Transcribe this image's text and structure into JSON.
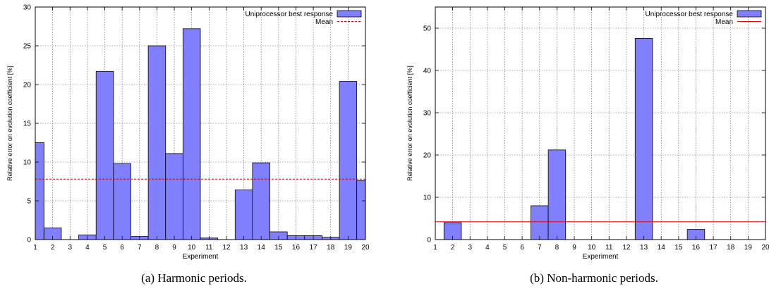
{
  "captions": [
    "(a) Harmonic periods.",
    "(b) Non-harmonic periods."
  ],
  "chart_data": [
    {
      "type": "bar",
      "xlabel": "Experiment",
      "ylabel": "Relative error on evolution coefficient [%]",
      "xlim": [
        1,
        20
      ],
      "ylim": [
        0,
        30
      ],
      "xticks": [
        1,
        2,
        3,
        4,
        5,
        6,
        7,
        8,
        9,
        10,
        11,
        12,
        13,
        14,
        15,
        16,
        17,
        18,
        19,
        20
      ],
      "yticks": [
        0,
        5,
        10,
        15,
        20,
        25,
        30
      ],
      "grid": true,
      "legend_position": "top-right",
      "series": [
        {
          "name": "Uniprocessor best response",
          "type": "bar",
          "color": "#8080ff",
          "x": [
            1,
            2,
            3,
            4,
            5,
            6,
            7,
            8,
            9,
            10,
            11,
            12,
            13,
            14,
            15,
            16,
            17,
            18,
            19,
            20
          ],
          "values": [
            12.5,
            1.5,
            0,
            0.6,
            21.7,
            9.8,
            0.4,
            25.0,
            11.1,
            27.2,
            0.2,
            0,
            6.4,
            9.9,
            1.0,
            0.5,
            0.5,
            0.3,
            20.4,
            7.6
          ]
        },
        {
          "name": "Mean",
          "type": "hline",
          "style": "dashed",
          "color": "#d00000",
          "value": 7.8
        }
      ]
    },
    {
      "type": "bar",
      "xlabel": "Experiment",
      "ylabel": "Relative error on evolution coefficient [%]",
      "xlim": [
        1,
        20
      ],
      "ylim": [
        0,
        55
      ],
      "xticks": [
        1,
        2,
        3,
        4,
        5,
        6,
        7,
        8,
        9,
        10,
        11,
        12,
        13,
        14,
        15,
        16,
        17,
        18,
        19,
        20
      ],
      "yticks": [
        0,
        10,
        20,
        30,
        40,
        50
      ],
      "grid": true,
      "legend_position": "top-right",
      "series": [
        {
          "name": "Uniprocessor best response",
          "type": "bar",
          "color": "#8080ff",
          "x": [
            1,
            2,
            3,
            4,
            5,
            6,
            7,
            8,
            9,
            10,
            11,
            12,
            13,
            14,
            15,
            16,
            17,
            18,
            19,
            20
          ],
          "values": [
            0,
            4.0,
            0,
            0,
            0,
            0,
            8.0,
            21.2,
            0,
            0,
            0,
            0,
            47.6,
            0,
            0,
            2.4,
            0,
            0,
            0,
            0
          ]
        },
        {
          "name": "Mean",
          "type": "hline",
          "style": "solid",
          "color": "#e00000",
          "value": 4.2
        }
      ]
    }
  ]
}
